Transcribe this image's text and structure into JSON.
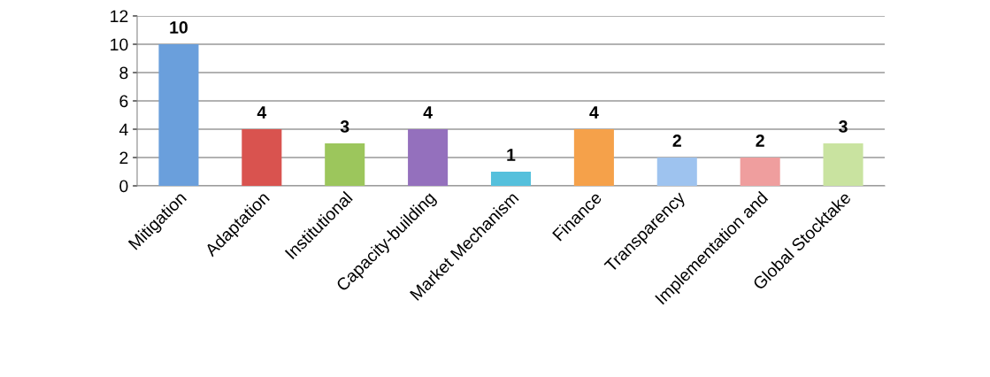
{
  "chart_data": {
    "type": "bar",
    "categories": [
      "Mitigation",
      "Adaptation",
      "Institutional",
      "Capacity-building",
      "Market Mechanism",
      "Finance",
      "Transparency",
      "Implementation and",
      "Global Stocktake"
    ],
    "values": [
      10,
      4,
      3,
      4,
      1,
      4,
      2,
      2,
      3
    ],
    "colors": [
      "#6a9fdc",
      "#d9534f",
      "#9cc65c",
      "#9470bd",
      "#55c0dc",
      "#f5a14a",
      "#9ec3ef",
      "#ef9e9e",
      "#c9e3a0"
    ],
    "ylim": [
      0,
      12
    ],
    "yticks": [
      0,
      2,
      4,
      6,
      8,
      10,
      12
    ],
    "grid": "y",
    "data_labels": true
  }
}
